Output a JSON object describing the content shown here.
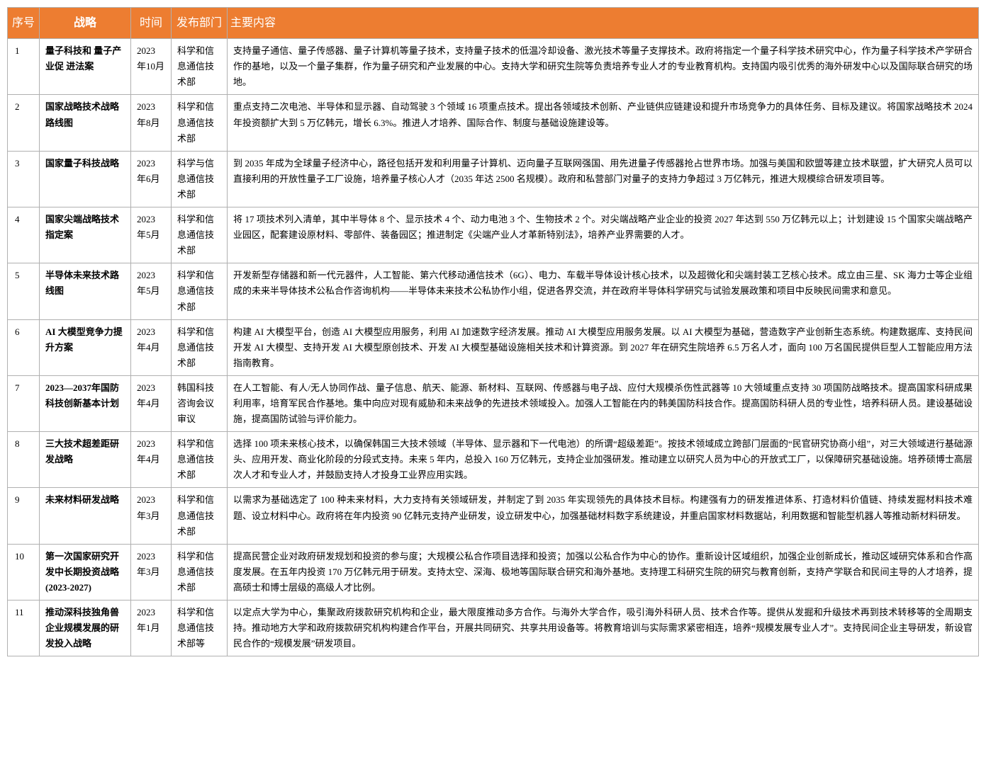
{
  "colors": {
    "header_bg": "#ed7d31",
    "header_fg": "#ffffff",
    "border": "#b0b0b0",
    "text": "#000000",
    "bg": "#ffffff"
  },
  "columns": [
    "序号",
    "战略",
    "时间",
    "发布部门",
    "主要内容"
  ],
  "rows": [
    {
      "idx": "1",
      "strategy": "量子科技和 量子产业促 进法案",
      "time": "2023 年10月",
      "dept": "科学和信息通信技术部",
      "content": "支持量子通信、量子传感器、量子计算机等量子技术，支持量子技术的低温冷却设备、激光技术等量子支撑技术。政府将指定一个量子科学技术研究中心，作为量子科学技术产学研合作的基地，以及一个量子集群，作为量子研究和产业发展的中心。支持大学和研究生院等负责培养专业人才的专业教育机构。支持国内吸引优秀的海外研发中心以及国际联合研究的场地。"
    },
    {
      "idx": "2",
      "strategy": "国家战略技术战略路线图",
      "time": "2023 年8月",
      "dept": "科学和信息通信技术部",
      "content": "重点支持二次电池、半导体和显示器、自动驾驶 3 个领域 16 项重点技术。提出各领域技术创新、产业链供应链建设和提升市场竞争力的具体任务、目标及建议。将国家战略技术 2024 年投资额扩大到 5 万亿韩元，增长 6.3%。推进人才培养、国际合作、制度与基础设施建设等。"
    },
    {
      "idx": "3",
      "strategy": "国家量子科技战略",
      "time": "2023 年6月",
      "dept": "科学与信息通信技术部",
      "content": "到 2035 年成为全球量子经济中心，路径包括开发和利用量子计算机、迈向量子互联网强国、用先进量子传感器抢占世界市场。加强与美国和欧盟等建立技术联盟，扩大研究人员可以直接利用的开放性量子工厂设施，培养量子核心人才（2035 年达 2500 名规模）。政府和私营部门对量子的支持力争超过 3 万亿韩元，推进大规模综合研发项目等。"
    },
    {
      "idx": "4",
      "strategy": "国家尖端战略技术指定案",
      "time": "2023 年5月",
      "dept": "科学和信息通信技术部",
      "content": "将 17 项技术列入清单，其中半导体 8 个、显示技术 4 个、动力电池 3 个、生物技术 2 个。对尖端战略产业企业的投资 2027 年达到 550 万亿韩元以上；计划建设 15 个国家尖端战略产业园区，配套建设原材料、零部件、装备园区；推进制定《尖端产业人才革新特别法》，培养产业界需要的人才。"
    },
    {
      "idx": "5",
      "strategy": "半导体未来技术路线图",
      "time": "2023 年5月",
      "dept": "科学和信息通信技术部",
      "content": "开发新型存储器和新一代元器件，人工智能、第六代移动通信技术（6G）、电力、车载半导体设计核心技术，以及超微化和尖端封装工艺核心技术。成立由三星、SK 海力士等企业组成的未来半导体技术公私合作咨询机构——半导体未来技术公私协作小组，促进各界交流，并在政府半导体科学研究与试验发展政策和项目中反映民间需求和意见。"
    },
    {
      "idx": "6",
      "strategy": "AI 大模型竞争力提升方案",
      "time": "2023 年4月",
      "dept": "科学和信息通信技术部",
      "content": "构建 AI 大模型平台，创造 AI 大模型应用服务，利用 AI 加速数字经济发展。推动 AI 大模型应用服务发展。以 AI 大模型为基础，营造数字产业创新生态系统。构建数据库、支持民间开发 AI 大模型、支持开发 AI 大模型原创技术、开发 AI 大模型基础设施相关技术和计算资源。到 2027 年在研究生院培养 6.5 万名人才，面向 100 万名国民提供巨型人工智能应用方法指南教育。"
    },
    {
      "idx": "7",
      "strategy": "2023—2037年国防科技创新基本计划",
      "time": "2023 年4月",
      "dept": "韩国科技咨询会议审议",
      "content": "在人工智能、有人/无人协同作战、量子信息、航天、能源、新材料、互联网、传感器与电子战、应付大规模杀伤性武器等 10 大领域重点支持 30 项国防战略技术。提高国家科研成果利用率，培育军民合作基地。集中向应对现有威胁和未来战争的先进技术领域投入。加强人工智能在内的韩美国防科技合作。提高国防科研人员的专业性，培养科研人员。建设基础设施，提高国防试验与评价能力。"
    },
    {
      "idx": "8",
      "strategy": "三大技术超差距研发战略",
      "time": "2023 年4月",
      "dept": "科学和信息通信技术部",
      "content": "选择 100 项未来核心技术，以确保韩国三大技术领域（半导体、显示器和下一代电池）的所谓“超级差距”。按技术领域成立跨部门层面的“民官研究协商小组”，对三大领域进行基础源头、应用开发、商业化阶段的分段式支持。未来 5 年内，总投入 160 万亿韩元，支持企业加强研发。推动建立以研究人员为中心的开放式工厂，以保障研究基础设施。培养硕博士高层次人才和专业人才，并鼓励支持人才投身工业界应用实践。"
    },
    {
      "idx": "9",
      "strategy": "未来材料研发战略",
      "time": "2023 年3月",
      "dept": "科学和信息通信技术部",
      "content": "以需求为基础选定了 100 种未来材料，大力支持有关领域研发，并制定了到 2035 年实现领先的具体技术目标。构建强有力的研发推进体系、打造材料价值链、持续发掘材料技术难题、设立材料中心。政府将在年内投资 90 亿韩元支持产业研发，设立研发中心，加强基础材料数字系统建设，并重启国家材料数据站，利用数据和智能型机器人等推动新材料研发。"
    },
    {
      "idx": "10",
      "strategy": "第一次国家研究开发中长期投资战略(2023-2027)",
      "time": "2023 年3月",
      "dept": "科学和信息通信技术部",
      "content": "提高民营企业对政府研发规划和投资的参与度；大规模公私合作项目选择和投资；加强以公私合作为中心的协作。重新设计区域组织，加强企业创新成长，推动区域研究体系和合作高度发展。在五年内投资 170 万亿韩元用于研发。支持太空、深海、极地等国际联合研究和海外基地。支持理工科研究生院的研究与教育创新，支持产学联合和民间主导的人才培养，提高硕士和博士层级的高级人才比例。"
    },
    {
      "idx": "11",
      "strategy": "推动深科技独角兽企业规模发展的研发投入战略",
      "time": "2023 年1月",
      "dept": "科学和信息通信技术部等",
      "content": "以定点大学为中心，集聚政府拨款研究机构和企业，最大限度推动多方合作。与海外大学合作，吸引海外科研人员、技术合作等。提供从发掘和升级技术再到技术转移等的全周期支持。推动地方大学和政府拨款研究机构构建合作平台，开展共同研究、共享共用设备等。将教育培训与实际需求紧密相连，培养“规模发展专业人才”。支持民间企业主导研发，新设官民合作的“规模发展”研发项目。"
    }
  ]
}
